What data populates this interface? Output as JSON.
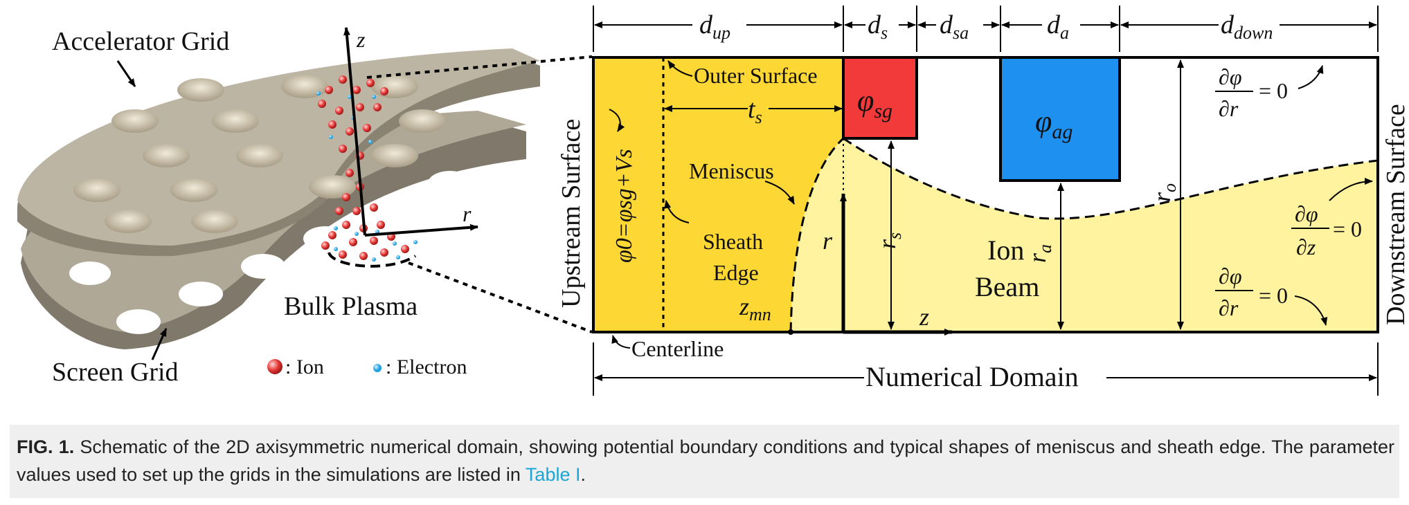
{
  "left_panel": {
    "accelerator_grid_label": "Accelerator Grid",
    "screen_grid_label": "Screen Grid",
    "bulk_plasma_label": "Bulk Plasma",
    "axis_z": "z",
    "axis_r": "r",
    "legend": [
      {
        "marker_color": "#e53935",
        "label": ": Ion"
      },
      {
        "marker_color": "#1ea0e0",
        "label": ": Electron"
      }
    ]
  },
  "domain": {
    "widths": {
      "d_up": {
        "base": "d",
        "sub": "up"
      },
      "d_s": {
        "base": "d",
        "sub": "s"
      },
      "d_sa": {
        "base": "d",
        "sub": "sa"
      },
      "d_a": {
        "base": "d",
        "sub": "a"
      },
      "d_down": {
        "base": "d",
        "sub": "down"
      }
    },
    "outer_surface": "Outer Surface",
    "t_s": {
      "base": "t",
      "sub": "s"
    },
    "phi_sg": {
      "base": "φ",
      "sub": "sg"
    },
    "phi_ag": {
      "base": "φ",
      "sub": "ag"
    },
    "upstream_surface": "Upstream Surface",
    "downstream_surface": "Downstream Surface",
    "upstream_bc": "φ0=φsg+Vs",
    "meniscus": "Meniscus",
    "sheath_edge": [
      "Sheath",
      "Edge"
    ],
    "z_mn": {
      "base": "z",
      "sub": "mn"
    },
    "r_label": "r",
    "z_label": "z",
    "r_s": {
      "base": "r",
      "sub": "s"
    },
    "r_a": {
      "base": "r",
      "sub": "a"
    },
    "r_o": {
      "base": "r",
      "sub": "o"
    },
    "ion_beam": [
      "Ion",
      "Beam"
    ],
    "centerline": "Centerline",
    "numerical_domain": "Numerical Domain",
    "bc_top": {
      "num": "∂φ",
      "den": "∂r",
      "eq": "= 0"
    },
    "bc_right": {
      "num": "∂φ",
      "den": "∂z",
      "eq": "= 0"
    },
    "bc_bottom": {
      "num": "∂φ",
      "den": "∂r",
      "eq": "= 0"
    },
    "colors": {
      "upstream_fill": "#fdd835",
      "beam_fill": "#fff3a0",
      "screen_grid": "#f23a3a",
      "accel_grid": "#1e90ef"
    }
  },
  "caption": {
    "fig_label": "FIG. 1.",
    "text": " Schematic of the 2D axisymmetric numerical domain, showing potential boundary conditions and typical shapes of meniscus and sheath edge. The parameter values used to set up the grids in the simulations are listed in ",
    "link_text": "Table I",
    "end": "."
  }
}
